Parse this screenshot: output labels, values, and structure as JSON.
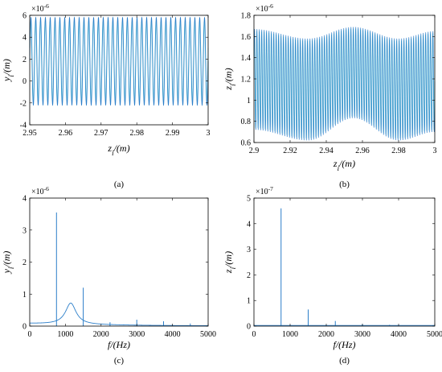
{
  "chart_data": [
    {
      "type": "line",
      "panel_label": "(a)",
      "xlabel": "z_i/(m)",
      "ylabel": "y_i/(m)",
      "y_exponent": "×10^-6",
      "xlim": [
        2.95,
        3.0
      ],
      "ylim": [
        -4,
        6
      ],
      "xticks": [
        "2.95",
        "2.96",
        "2.97",
        "2.98",
        "2.99",
        "3"
      ],
      "yticks": [
        "-4",
        "-2",
        "0",
        "2",
        "4",
        "6"
      ],
      "signal": {
        "kind": "oscillation",
        "center": 1.8,
        "amplitude": 4.0,
        "cycles": 37
      },
      "line_color": "#2b7ec9",
      "secondary_color": "#5fd0d6",
      "grid": false
    },
    {
      "type": "line",
      "panel_label": "(b)",
      "xlabel": "z_i/(m)",
      "ylabel": "z_i/(m)",
      "y_exponent": "×10^-6",
      "xlim": [
        2.9,
        3.0
      ],
      "ylim": [
        0.6,
        1.8
      ],
      "xticks": [
        "2.9",
        "2.92",
        "2.94",
        "2.96",
        "2.98",
        "3"
      ],
      "yticks": [
        "0.6",
        "0.8",
        "1",
        "1.2",
        "1.4",
        "1.6",
        "1.8"
      ],
      "signal": {
        "kind": "modulated_oscillation",
        "upper_envelope": [
          [
            2.9,
            1.67
          ],
          [
            2.93,
            1.58
          ],
          [
            2.955,
            1.69
          ],
          [
            2.98,
            1.58
          ],
          [
            3.0,
            1.65
          ]
        ],
        "lower_envelope": [
          [
            2.9,
            0.72
          ],
          [
            2.93,
            0.62
          ],
          [
            2.955,
            0.83
          ],
          [
            2.98,
            0.62
          ],
          [
            3.0,
            0.7
          ]
        ],
        "cycles": 75
      },
      "line_color": "#2b7ec9",
      "secondary_color": "#5fd0d6",
      "grid": false
    },
    {
      "type": "line",
      "panel_label": "(c)",
      "xlabel": "f/(Hz)",
      "ylabel": "y_i/(m)",
      "y_exponent": "×10^-6",
      "xlim": [
        0,
        5000
      ],
      "ylim": [
        0,
        4
      ],
      "xticks": [
        "0",
        "1000",
        "2000",
        "3000",
        "4000",
        "5000"
      ],
      "yticks": [
        "0",
        "1",
        "2",
        "3",
        "4"
      ],
      "peaks": [
        {
          "x": 750,
          "y": 3.55
        },
        {
          "x": 1500,
          "y": 1.2
        },
        {
          "x": 2250,
          "y": 0.12
        },
        {
          "x": 3000,
          "y": 0.2
        },
        {
          "x": 3750,
          "y": 0.15
        },
        {
          "x": 4500,
          "y": 0.08
        }
      ],
      "resonance": {
        "center": 1150,
        "height": 0.67,
        "width": 180,
        "baseline": 0.08
      },
      "line_color": "#2b7ec9",
      "grid": false
    },
    {
      "type": "line",
      "panel_label": "(d)",
      "xlabel": "f/(Hz)",
      "ylabel": "z_i/(m)",
      "y_exponent": "×10^-7",
      "xlim": [
        0,
        5000
      ],
      "ylim": [
        0,
        5
      ],
      "xticks": [
        "0",
        "1000",
        "2000",
        "3000",
        "4000",
        "5000"
      ],
      "yticks": [
        "0",
        "1",
        "2",
        "3",
        "4",
        "5"
      ],
      "peaks": [
        {
          "x": 750,
          "y": 4.6
        },
        {
          "x": 1500,
          "y": 0.65
        },
        {
          "x": 2250,
          "y": 0.2
        },
        {
          "x": 3000,
          "y": 0.08
        },
        {
          "x": 3750,
          "y": 0.05
        }
      ],
      "line_color": "#2b7ec9",
      "grid": false
    }
  ]
}
